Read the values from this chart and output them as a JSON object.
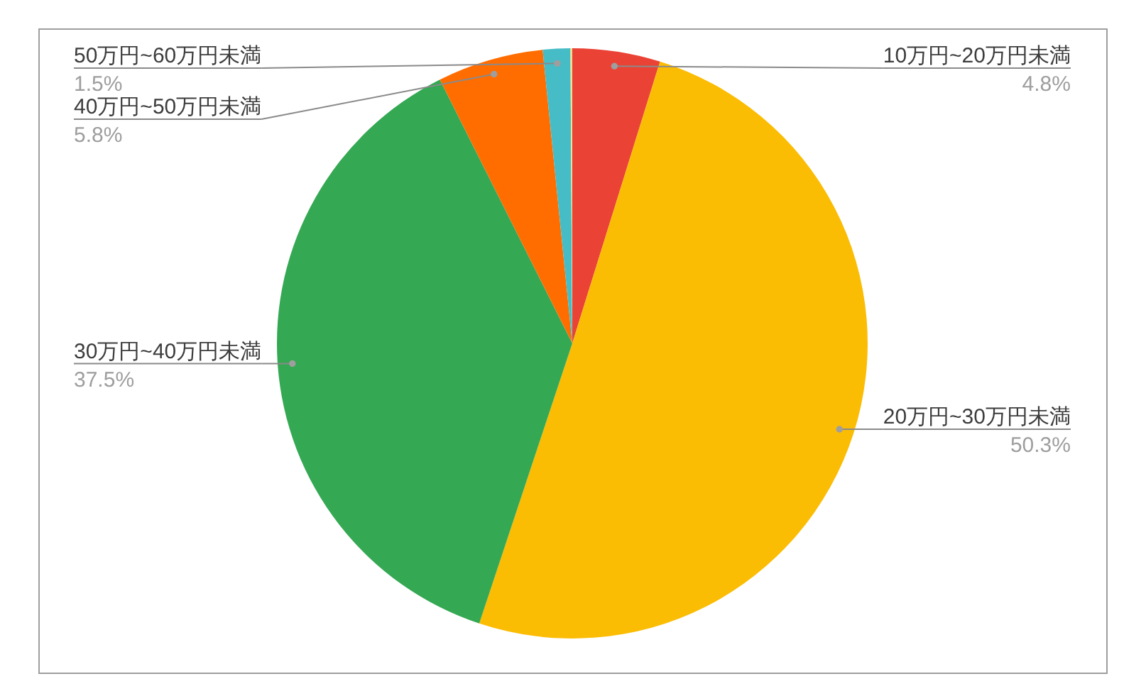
{
  "chart_data": {
    "type": "pie",
    "categories": [
      "10万円~20万円未満",
      "20万円~30万円未満",
      "30万円~40万円未満",
      "40万円~50万円未満",
      "50万円~60万円未満",
      null
    ],
    "values": [
      4.8,
      50.3,
      37.5,
      5.8,
      1.5,
      0.1
    ],
    "value_labels": [
      "4.8%",
      "50.3%",
      "37.5%",
      "5.8%",
      "1.5%",
      null
    ],
    "colors": [
      "#ea4335",
      "#fbbc04",
      "#34a853",
      "#ff6d01",
      "#46bdc6",
      "#f2df8c"
    ]
  }
}
